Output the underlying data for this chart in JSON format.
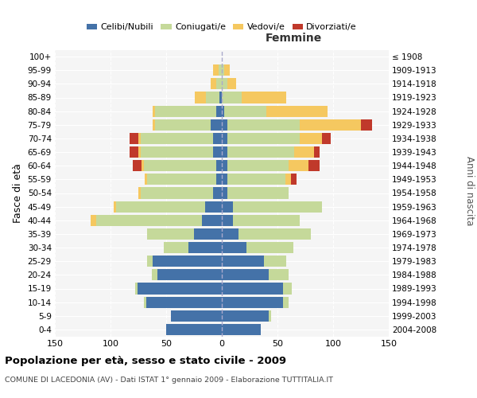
{
  "age_groups": [
    "0-4",
    "5-9",
    "10-14",
    "15-19",
    "20-24",
    "25-29",
    "30-34",
    "35-39",
    "40-44",
    "45-49",
    "50-54",
    "55-59",
    "60-64",
    "65-69",
    "70-74",
    "75-79",
    "80-84",
    "85-89",
    "90-94",
    "95-99",
    "100+"
  ],
  "birth_years": [
    "2004-2008",
    "1999-2003",
    "1994-1998",
    "1989-1993",
    "1984-1988",
    "1979-1983",
    "1974-1978",
    "1969-1973",
    "1964-1968",
    "1959-1963",
    "1954-1958",
    "1949-1953",
    "1944-1948",
    "1939-1943",
    "1934-1938",
    "1929-1933",
    "1924-1928",
    "1919-1923",
    "1914-1918",
    "1909-1913",
    "≤ 1908"
  ],
  "males": {
    "celibi": [
      50,
      46,
      68,
      76,
      58,
      62,
      30,
      25,
      18,
      15,
      8,
      5,
      5,
      8,
      8,
      10,
      5,
      2,
      0,
      0,
      0
    ],
    "coniugati": [
      0,
      0,
      2,
      2,
      5,
      5,
      22,
      42,
      95,
      80,
      65,
      62,
      65,
      65,
      65,
      50,
      55,
      12,
      5,
      3,
      0
    ],
    "vedovi": [
      0,
      0,
      0,
      0,
      0,
      0,
      0,
      0,
      5,
      2,
      2,
      2,
      2,
      2,
      2,
      2,
      2,
      10,
      5,
      5,
      0
    ],
    "divorziati": [
      0,
      0,
      0,
      0,
      0,
      0,
      0,
      0,
      0,
      0,
      0,
      0,
      8,
      8,
      8,
      0,
      0,
      0,
      0,
      0,
      0
    ]
  },
  "females": {
    "nubili": [
      35,
      42,
      55,
      55,
      42,
      38,
      22,
      15,
      10,
      10,
      5,
      5,
      5,
      5,
      5,
      5,
      2,
      0,
      0,
      0,
      0
    ],
    "coniugate": [
      0,
      2,
      5,
      8,
      18,
      20,
      42,
      65,
      60,
      80,
      55,
      52,
      55,
      60,
      65,
      65,
      38,
      18,
      5,
      2,
      0
    ],
    "vedove": [
      0,
      0,
      0,
      0,
      0,
      0,
      0,
      0,
      0,
      0,
      0,
      5,
      18,
      18,
      20,
      55,
      55,
      40,
      8,
      5,
      0
    ],
    "divorziate": [
      0,
      0,
      0,
      0,
      0,
      0,
      0,
      0,
      0,
      0,
      0,
      5,
      10,
      5,
      8,
      10,
      0,
      0,
      0,
      0,
      0
    ]
  },
  "colors": {
    "celibi": "#4472a8",
    "coniugati": "#c5d99a",
    "vedovi": "#f5c860",
    "divorziati": "#c0392b"
  },
  "title": "Popolazione per età, sesso e stato civile - 2009",
  "subtitle": "COMUNE DI LACEDONIA (AV) - Dati ISTAT 1° gennaio 2009 - Elaborazione TUTTITALIA.IT",
  "xlim": 150,
  "ylabel_left": "Fasce di età",
  "ylabel_right": "Anni di nascita",
  "bg_color": "#f5f5f5"
}
